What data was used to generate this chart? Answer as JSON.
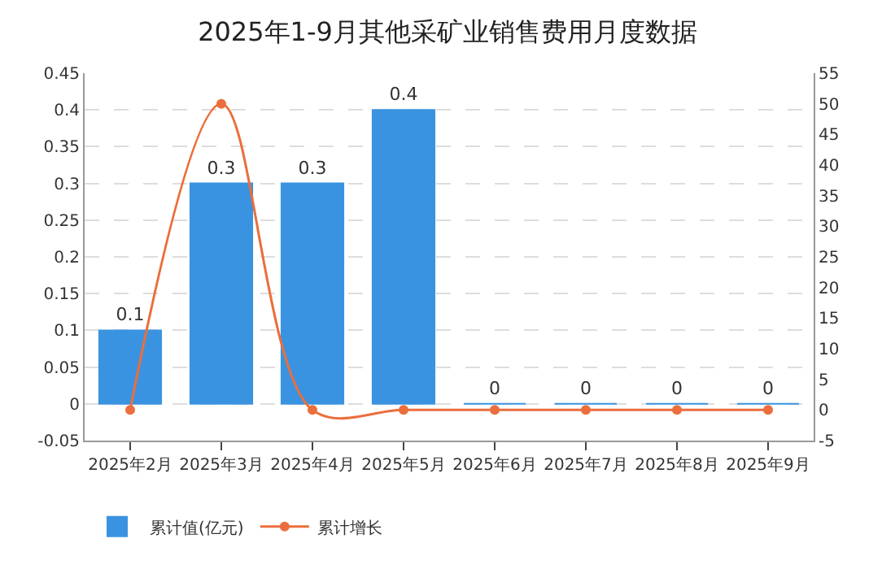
{
  "chart_data": {
    "type": "bar",
    "title": "2025年1-9月其他采矿业销售费用月度数据",
    "categories": [
      "2025年2月",
      "2025年3月",
      "2025年4月",
      "2025年5月",
      "2025年6月",
      "2025年7月",
      "2025年8月",
      "2025年9月"
    ],
    "series": [
      {
        "name": "累计值(亿元)",
        "color": "#3a93e0",
        "values": [
          0.1,
          0.3,
          0.3,
          0.4,
          0,
          0,
          0,
          0
        ],
        "data_labels": true
      },
      {
        "name": "累计增长",
        "type": "line",
        "axis": "y2",
        "color": "#eb6e3c",
        "marker": "circle",
        "values": [
          0,
          50,
          0,
          0,
          0,
          0,
          0,
          0
        ]
      }
    ],
    "ylim": [
      -0.05,
      0.45
    ],
    "yticks": [
      -0.05,
      0,
      0.05,
      0.1,
      0.15,
      0.2,
      0.25,
      0.3,
      0.35,
      0.4,
      0.45
    ],
    "y2lim": [
      -5,
      55
    ],
    "y2ticks": [
      -5,
      0,
      5,
      10,
      15,
      20,
      25,
      30,
      35,
      40,
      45,
      50,
      55
    ],
    "grid": "y",
    "legend": "bottom left"
  }
}
